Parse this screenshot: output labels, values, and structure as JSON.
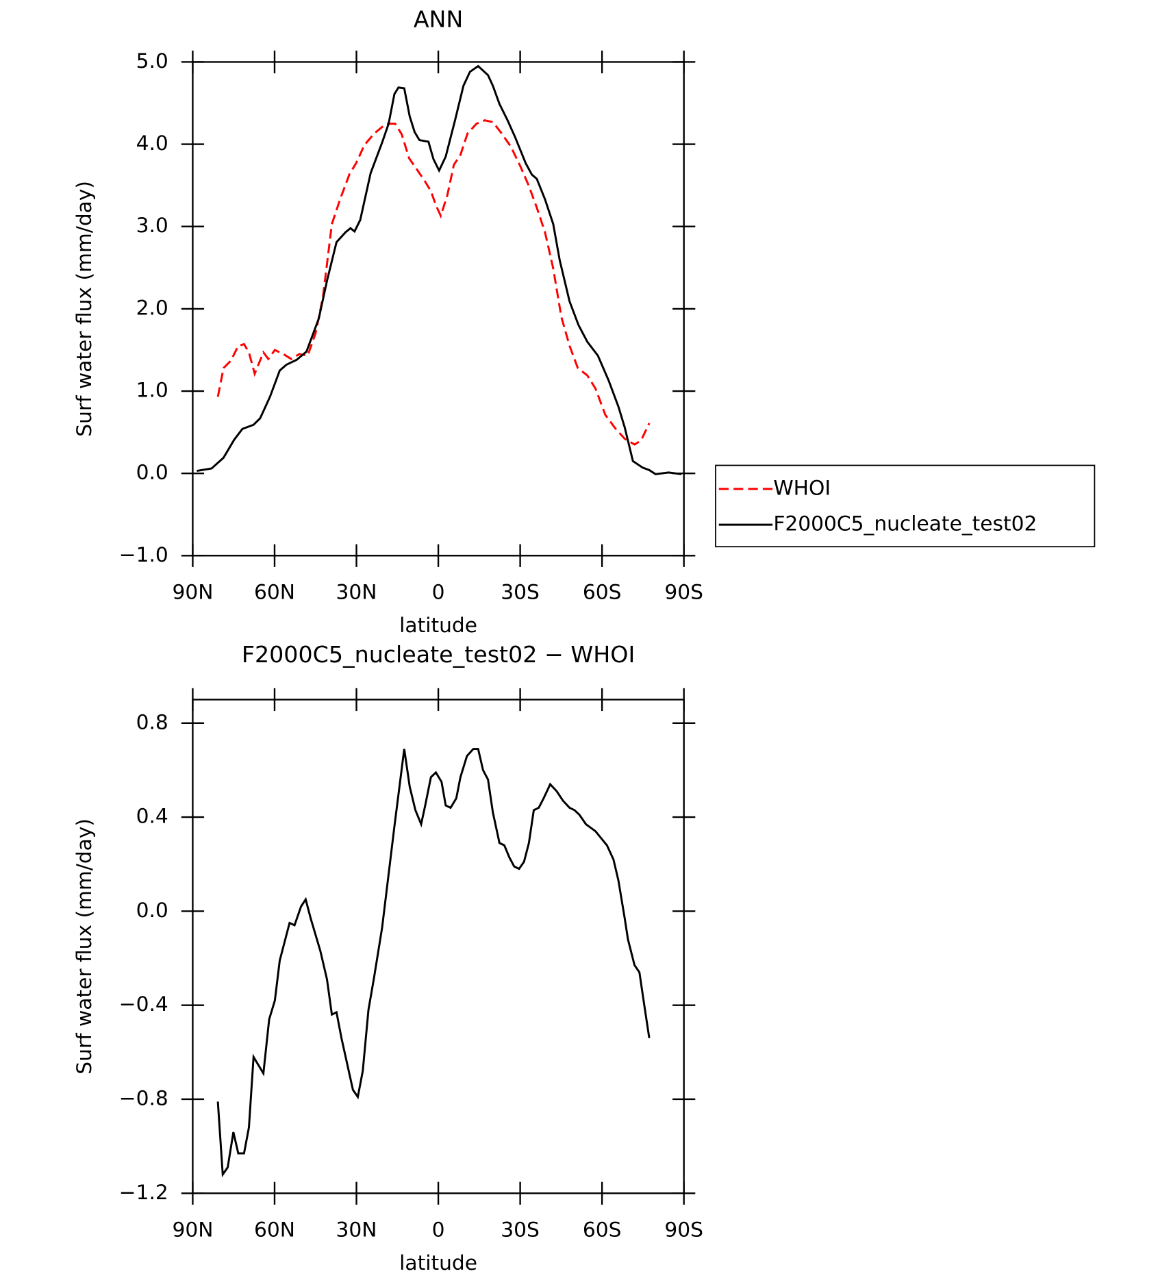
{
  "chart_data": [
    {
      "type": "line",
      "title": "ANN",
      "xlabel": "latitude",
      "ylabel": "Surf water flux (mm/day)",
      "xlim": [
        90,
        -90
      ],
      "xticks": [
        {
          "value": 90,
          "label": "90N"
        },
        {
          "value": 60,
          "label": "60N"
        },
        {
          "value": 30,
          "label": "30N"
        },
        0,
        {
          "value": -30,
          "label": "30S"
        },
        {
          "value": -60,
          "label": "60S"
        },
        {
          "value": -90,
          "label": "90S"
        }
      ],
      "ylim": [
        -1,
        5
      ],
      "yticks": [
        {
          "value": -1,
          "label": "−1.0"
        },
        {
          "value": 0,
          "label": "0.0"
        },
        {
          "value": 1,
          "label": "1.0"
        },
        {
          "value": 2,
          "label": "2.0"
        },
        {
          "value": 3,
          "label": "3.0"
        },
        {
          "value": 4,
          "label": "4.0"
        },
        {
          "value": 5,
          "label": "5.0"
        }
      ],
      "grid": false,
      "legend": "right",
      "series": [
        {
          "name": "WHOI",
          "color": "#ff0000",
          "line_style": "dashed",
          "x": [
            80.8,
            78.7,
            76.0,
            73.3,
            71.2,
            69.4,
            67.3,
            64.1,
            62.3,
            59.9,
            56.3,
            53.9,
            50.9,
            47.9,
            45.0,
            42.3,
            39.0,
            36.0,
            32.5,
            30.1,
            27.1,
            23.5,
            19.1,
            15.8,
            13.4,
            10.7,
            8.0,
            5.1,
            2.7,
            0.9,
            -0.9,
            -3.3,
            -5.7,
            -8.1,
            -10.7,
            -14.0,
            -17.0,
            -20.0,
            -23.0,
            -26.6,
            -30.1,
            -33.1,
            -36.1,
            -39.1,
            -42.1,
            -45.1,
            -48.1,
            -51.1,
            -54.6,
            -57.6,
            -61.2,
            -64.8,
            -68.3,
            -71.9,
            -74.3,
            -77.3
          ],
          "values": [
            0.93,
            1.28,
            1.37,
            1.55,
            1.57,
            1.47,
            1.21,
            1.47,
            1.39,
            1.5,
            1.44,
            1.39,
            1.45,
            1.43,
            1.7,
            2.14,
            3.03,
            3.33,
            3.64,
            3.77,
            3.99,
            4.13,
            4.25,
            4.25,
            4.12,
            3.83,
            3.7,
            3.56,
            3.43,
            3.26,
            3.13,
            3.38,
            3.75,
            3.87,
            4.13,
            4.25,
            4.29,
            4.27,
            4.14,
            3.97,
            3.73,
            3.5,
            3.23,
            2.93,
            2.49,
            1.9,
            1.55,
            1.28,
            1.19,
            1.03,
            0.71,
            0.55,
            0.42,
            0.35,
            0.4,
            0.61
          ]
        },
        {
          "name": "F2000C5_nucleate_test02",
          "color": "#000000",
          "line_style": "solid",
          "x": [
            88.5,
            83.1,
            78.7,
            74.8,
            71.8,
            67.7,
            65.3,
            61.7,
            58.1,
            55.7,
            51.9,
            48.3,
            43.8,
            40.8,
            37.3,
            34.0,
            32.2,
            30.7,
            28.6,
            24.8,
            20.6,
            18.2,
            16.1,
            14.6,
            12.5,
            10.5,
            8.7,
            6.9,
            3.6,
            1.8,
            -0.3,
            -2.7,
            -6.2,
            -9.2,
            -11.6,
            -14.6,
            -18.2,
            -20.0,
            -22.4,
            -25.4,
            -28.1,
            -32.0,
            -34.3,
            -36.1,
            -39.1,
            -42.1,
            -44.5,
            -48.1,
            -51.4,
            -54.6,
            -58.5,
            -62.4,
            -66.0,
            -68.3,
            -71.3,
            -74.9,
            -77.3,
            -79.6,
            -84.4,
            -89.1
          ],
          "values": [
            0.03,
            0.06,
            0.19,
            0.41,
            0.54,
            0.59,
            0.67,
            0.93,
            1.25,
            1.32,
            1.38,
            1.48,
            1.88,
            2.34,
            2.81,
            2.93,
            2.98,
            2.94,
            3.08,
            3.65,
            4.02,
            4.25,
            4.61,
            4.69,
            4.68,
            4.34,
            4.15,
            4.05,
            4.03,
            3.82,
            3.68,
            3.85,
            4.3,
            4.71,
            4.88,
            4.95,
            4.84,
            4.71,
            4.49,
            4.29,
            4.09,
            3.77,
            3.63,
            3.58,
            3.33,
            3.03,
            2.59,
            2.09,
            1.8,
            1.6,
            1.43,
            1.13,
            0.81,
            0.56,
            0.15,
            0.07,
            0.04,
            -0.01,
            0.01,
            -0.01
          ]
        }
      ]
    },
    {
      "type": "line",
      "title": "F2000C5_nucleate_test02 − WHOI",
      "xlabel": "latitude",
      "ylabel": "Surf water flux (mm/day)",
      "xlim": [
        90,
        -90
      ],
      "xticks": [
        {
          "value": 90,
          "label": "90N"
        },
        {
          "value": 60,
          "label": "60N"
        },
        {
          "value": 30,
          "label": "30N"
        },
        0,
        {
          "value": -30,
          "label": "30S"
        },
        {
          "value": -60,
          "label": "60S"
        },
        {
          "value": -90,
          "label": "90S"
        }
      ],
      "ylim": [
        -1.2,
        0.9
      ],
      "yticks": [
        {
          "value": -1.2,
          "label": "−1.2"
        },
        {
          "value": -0.8,
          "label": "−0.8"
        },
        {
          "value": -0.4,
          "label": "−0.4"
        },
        {
          "value": 0,
          "label": "0.0"
        },
        0.4,
        0.8
      ],
      "grid": false,
      "series": [
        {
          "color": "#000000",
          "line_style": "solid",
          "x": [
            80.8,
            79.0,
            77.2,
            75.1,
            73.3,
            71.2,
            69.4,
            67.7,
            64.1,
            62.0,
            59.9,
            58.1,
            54.5,
            52.7,
            50.3,
            48.6,
            46.8,
            43.2,
            40.8,
            39.0,
            37.3,
            35.5,
            31.3,
            29.5,
            27.7,
            25.6,
            23.5,
            20.6,
            16.1,
            12.5,
            10.5,
            8.4,
            6.3,
            4.8,
            2.7,
            0.9,
            -1.2,
            -2.7,
            -4.5,
            -6.6,
            -8.1,
            -10.5,
            -12.8,
            -14.6,
            -16.4,
            -18.2,
            -20.0,
            -22.4,
            -24.2,
            -26.0,
            -27.8,
            -29.6,
            -31.4,
            -33.2,
            -35.0,
            -36.8,
            -38.6,
            -41.0,
            -43.4,
            -45.7,
            -48.1,
            -49.9,
            -51.7,
            -54.1,
            -57.6,
            -61.8,
            -64.2,
            -66.0,
            -68.3,
            -69.5,
            -71.9,
            -73.7,
            -75.5,
            -77.3
          ],
          "values": [
            -0.81,
            -1.12,
            -1.09,
            -0.94,
            -1.03,
            -1.03,
            -0.92,
            -0.62,
            -0.69,
            -0.46,
            -0.38,
            -0.21,
            -0.05,
            -0.06,
            0.02,
            0.05,
            -0.03,
            -0.17,
            -0.29,
            -0.44,
            -0.43,
            -0.54,
            -0.76,
            -0.79,
            -0.68,
            -0.42,
            -0.28,
            -0.07,
            0.36,
            0.69,
            0.53,
            0.43,
            0.37,
            0.45,
            0.57,
            0.59,
            0.55,
            0.45,
            0.44,
            0.48,
            0.57,
            0.66,
            0.69,
            0.69,
            0.6,
            0.56,
            0.42,
            0.29,
            0.28,
            0.23,
            0.19,
            0.18,
            0.21,
            0.29,
            0.43,
            0.44,
            0.48,
            0.54,
            0.51,
            0.47,
            0.44,
            0.43,
            0.41,
            0.37,
            0.34,
            0.28,
            0.22,
            0.13,
            -0.03,
            -0.12,
            -0.23,
            -0.26,
            -0.4,
            -0.54
          ]
        }
      ]
    }
  ]
}
